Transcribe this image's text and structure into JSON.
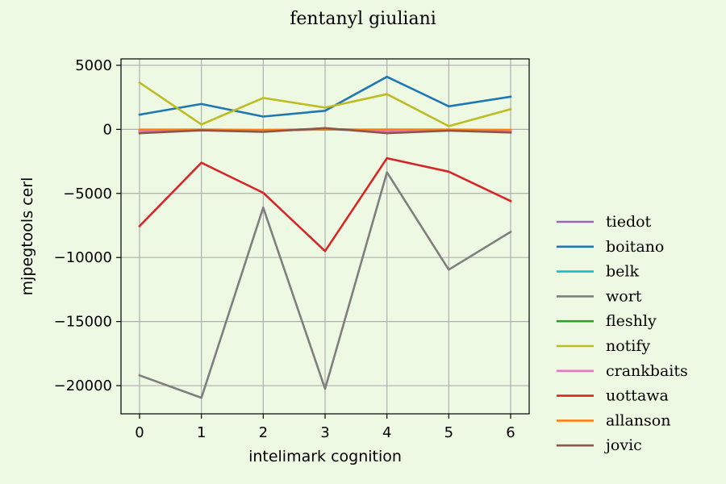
{
  "chart_data": {
    "type": "line",
    "title": "fentanyl giuliani",
    "xlabel": "intelimark cognition",
    "ylabel": "mjpegtools cerl",
    "x": [
      0,
      1,
      2,
      3,
      4,
      5,
      6
    ],
    "xlim": [
      -0.3,
      6.3
    ],
    "ylim": [
      -22200,
      5500
    ],
    "xticks": [
      0,
      1,
      2,
      3,
      4,
      5,
      6
    ],
    "yticks": [
      5000,
      0,
      -5000,
      -10000,
      -15000,
      -20000
    ],
    "ytick_labels": [
      "5000",
      "0",
      "−5000",
      "−10000",
      "−15000",
      "−20000"
    ],
    "grid": true,
    "legend_position": "right, outside plot",
    "series": [
      {
        "name": "tiedot",
        "color": "#9467bd",
        "values": [
          -100,
          -50,
          -100,
          0,
          -100,
          -50,
          -100
        ]
      },
      {
        "name": "boitano",
        "color": "#1f77b4",
        "values": [
          1150,
          1980,
          1000,
          1450,
          4100,
          1800,
          2550
        ]
      },
      {
        "name": "belk",
        "color": "#17becf",
        "values": [
          -80,
          -30,
          -60,
          20,
          -80,
          -40,
          -60
        ]
      },
      {
        "name": "wort",
        "color": "#7f7f7f",
        "values": [
          -19200,
          -20950,
          -6100,
          -20250,
          -3350,
          -10950,
          -8000
        ]
      },
      {
        "name": "fleshly",
        "color": "#2ca02c",
        "values": [
          -60,
          -40,
          -80,
          10,
          -60,
          -40,
          -80
        ]
      },
      {
        "name": "notify",
        "color": "#bcbd22",
        "values": [
          3650,
          380,
          2450,
          1700,
          2750,
          250,
          1580
        ]
      },
      {
        "name": "crankbaits",
        "color": "#e377c2",
        "values": [
          -120,
          -60,
          -100,
          30,
          -120,
          -70,
          -110
        ]
      },
      {
        "name": "uottawa",
        "color": "#d62728",
        "values": [
          -7550,
          -2600,
          -4950,
          -9500,
          -2250,
          -3300,
          -5600
        ]
      },
      {
        "name": "allanson",
        "color": "#ff7f0e",
        "values": [
          -20,
          -10,
          -40,
          -20,
          -10,
          -10,
          -40
        ]
      },
      {
        "name": "jovic",
        "color": "#8c564b",
        "values": [
          -300,
          -80,
          -200,
          100,
          -300,
          -100,
          -250
        ]
      }
    ]
  }
}
